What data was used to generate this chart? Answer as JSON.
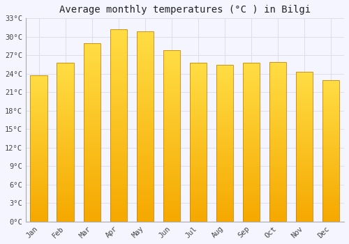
{
  "title": "Average monthly temperatures (°C ) in Bilgi",
  "months": [
    "Jan",
    "Feb",
    "Mar",
    "Apr",
    "May",
    "Jun",
    "Jul",
    "Aug",
    "Sep",
    "Oct",
    "Nov",
    "Dec"
  ],
  "temperatures": [
    23.8,
    25.8,
    29.0,
    31.2,
    30.9,
    27.8,
    25.8,
    25.5,
    25.8,
    25.9,
    24.3,
    23.0
  ],
  "bar_color_top": "#FFDD44",
  "bar_color_bottom": "#F5A800",
  "bar_edge_color": "#C8860A",
  "background_color": "#f5f5ff",
  "plot_bg_color": "#f5f5ff",
  "grid_color": "#ddddee",
  "ylim": [
    0,
    33
  ],
  "yticks": [
    0,
    3,
    6,
    9,
    12,
    15,
    18,
    21,
    24,
    27,
    30,
    33
  ],
  "ytick_labels": [
    "0°C",
    "3°C",
    "6°C",
    "9°C",
    "12°C",
    "15°C",
    "18°C",
    "21°C",
    "24°C",
    "27°C",
    "30°C",
    "33°C"
  ],
  "title_fontsize": 10,
  "tick_fontsize": 7.5,
  "font_family": "monospace",
  "bar_width": 0.65
}
